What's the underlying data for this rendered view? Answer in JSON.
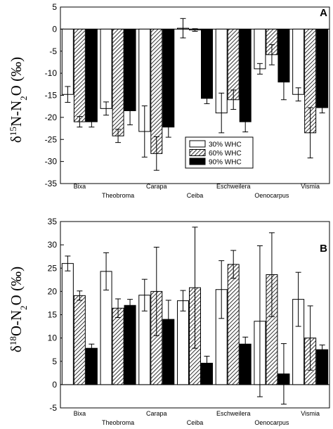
{
  "chart_data": [
    {
      "type": "bar",
      "panel_label": "A",
      "ylabel": {
        "prefix": "δ",
        "sup": "15",
        "mid": "N-N",
        "sub": "2",
        "suffix": "O (‰)"
      },
      "ylim": [
        -35,
        5
      ],
      "yticks": [
        5,
        0,
        -5,
        -10,
        -15,
        -20,
        -25,
        -30,
        -35
      ],
      "categories": [
        "Bixa",
        "Theobroma",
        "Carapa",
        "Ceiba",
        "Eschweilera",
        "Oenocarpus",
        "Vismia"
      ],
      "series": [
        {
          "name": "30% WHC",
          "values": [
            -14.8,
            -18.0,
            -23.2,
            0.2,
            -19.0,
            -9.0,
            -14.8
          ],
          "errors": [
            1.8,
            1.5,
            5.8,
            2.2,
            4.5,
            1.2,
            1.5
          ]
        },
        {
          "name": "60% WHC",
          "values": [
            -21.0,
            -24.2,
            -28.2,
            -0.2,
            -16.0,
            -5.8,
            -23.5
          ],
          "errors": [
            1.2,
            1.5,
            3.8,
            0.3,
            2.2,
            2.3,
            5.7
          ]
        },
        {
          "name": "90% WHC",
          "values": [
            -21.0,
            -18.5,
            -22.2,
            -15.7,
            -21.0,
            -12.0,
            -17.8
          ],
          "errors": [
            1.2,
            3.2,
            2.3,
            1.2,
            2.3,
            4.0,
            1.2
          ]
        }
      ],
      "legend": {
        "placement": "lower-center",
        "entries": [
          "30% WHC",
          "60% WHC",
          "90% WHC"
        ]
      },
      "grid": false
    },
    {
      "type": "bar",
      "panel_label": "B",
      "ylabel": {
        "prefix": "δ",
        "sup": "18",
        "mid": "O-N",
        "sub": "2",
        "suffix": "O (‰)"
      },
      "ylim": [
        -5,
        35
      ],
      "yticks": [
        35,
        30,
        25,
        20,
        15,
        10,
        5,
        0,
        -5
      ],
      "categories": [
        "Bixa",
        "Theobroma",
        "Carapa",
        "Ceiba",
        "Eschweilera",
        "Oenocarpus",
        "Vismia"
      ],
      "series": [
        {
          "name": "30% WHC",
          "values": [
            26.0,
            24.3,
            19.2,
            18.0,
            20.4,
            13.6,
            18.3
          ],
          "errors": [
            1.6,
            4.0,
            3.4,
            2.2,
            6.2,
            16.2,
            5.8
          ]
        },
        {
          "name": "60% WHC",
          "values": [
            19.1,
            16.4,
            20.0,
            20.8,
            25.8,
            23.6,
            10.0
          ],
          "errors": [
            1.0,
            2.0,
            9.5,
            13.0,
            3.0,
            9.0,
            6.9
          ]
        },
        {
          "name": "90% WHC",
          "values": [
            7.8,
            17.0,
            14.0,
            4.6,
            8.7,
            2.3,
            7.5
          ],
          "errors": [
            0.9,
            1.3,
            4.1,
            1.5,
            1.5,
            6.5,
            1.0
          ]
        }
      ],
      "grid": false
    }
  ]
}
